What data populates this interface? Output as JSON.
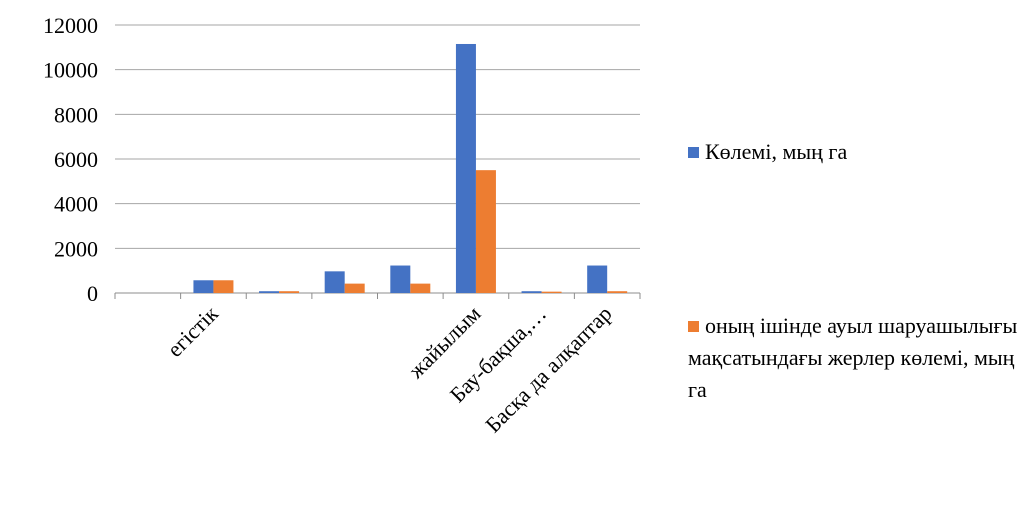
{
  "chart_data": {
    "type": "bar",
    "categories": [
      null,
      "егістік",
      null,
      null,
      null,
      "жайылым",
      "Бау-бақша,…",
      "Басқа да алқаптар"
    ],
    "series": [
      {
        "name": "Көлемі, мың га",
        "color": "#4472c4",
        "values": [
          0,
          570,
          80,
          970,
          1230,
          11150,
          80,
          1230
        ]
      },
      {
        "name": "оның ішінде ауыл шаруашылығы мақсатындағы жерлер көлемі, мың га",
        "color": "#ed7d31",
        "values": [
          0,
          570,
          80,
          420,
          420,
          5500,
          60,
          80
        ]
      }
    ],
    "ylim": [
      0,
      12000
    ],
    "yticks": [
      0,
      2000,
      4000,
      6000,
      8000,
      10000,
      12000
    ],
    "grid": true
  }
}
